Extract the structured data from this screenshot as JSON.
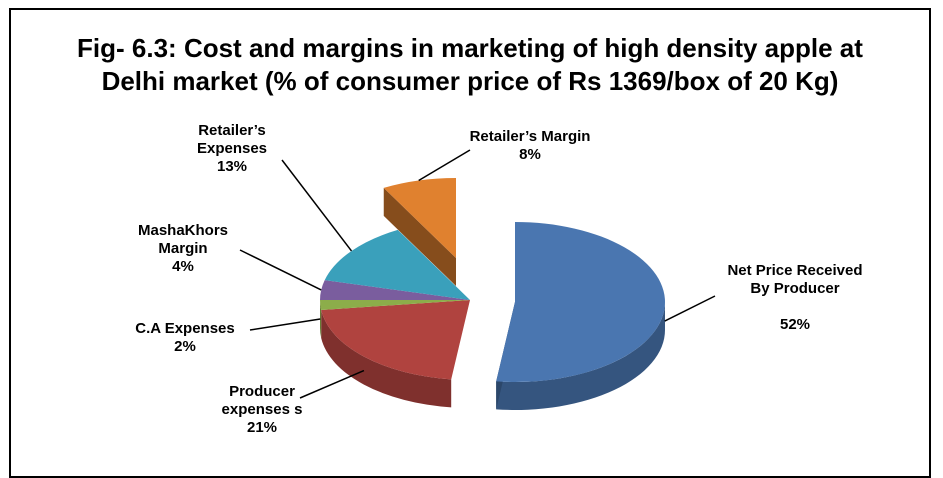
{
  "chart_data": {
    "type": "pie",
    "title": "Fig- 6.3: Cost and margins in marketing of high density apple at Delhi market (% of consumer price of Rs 1369/box of  20 Kg)",
    "categories": [
      "Net Price Received By Producer",
      "Producer expenses s",
      "C.A Expenses",
      "MashaKhors Margin",
      "Retailer’s Expenses",
      "Retailer’s Margin"
    ],
    "values": [
      52,
      21,
      2,
      4,
      13,
      8
    ],
    "value_labels": [
      "52%",
      "21%",
      "2%",
      "4%",
      "13%",
      "8%"
    ],
    "colors": [
      "#4a76b0",
      "#b0433f",
      "#8cad4a",
      "#7a5d9e",
      "#3aa0bb",
      "#e0812f"
    ]
  }
}
